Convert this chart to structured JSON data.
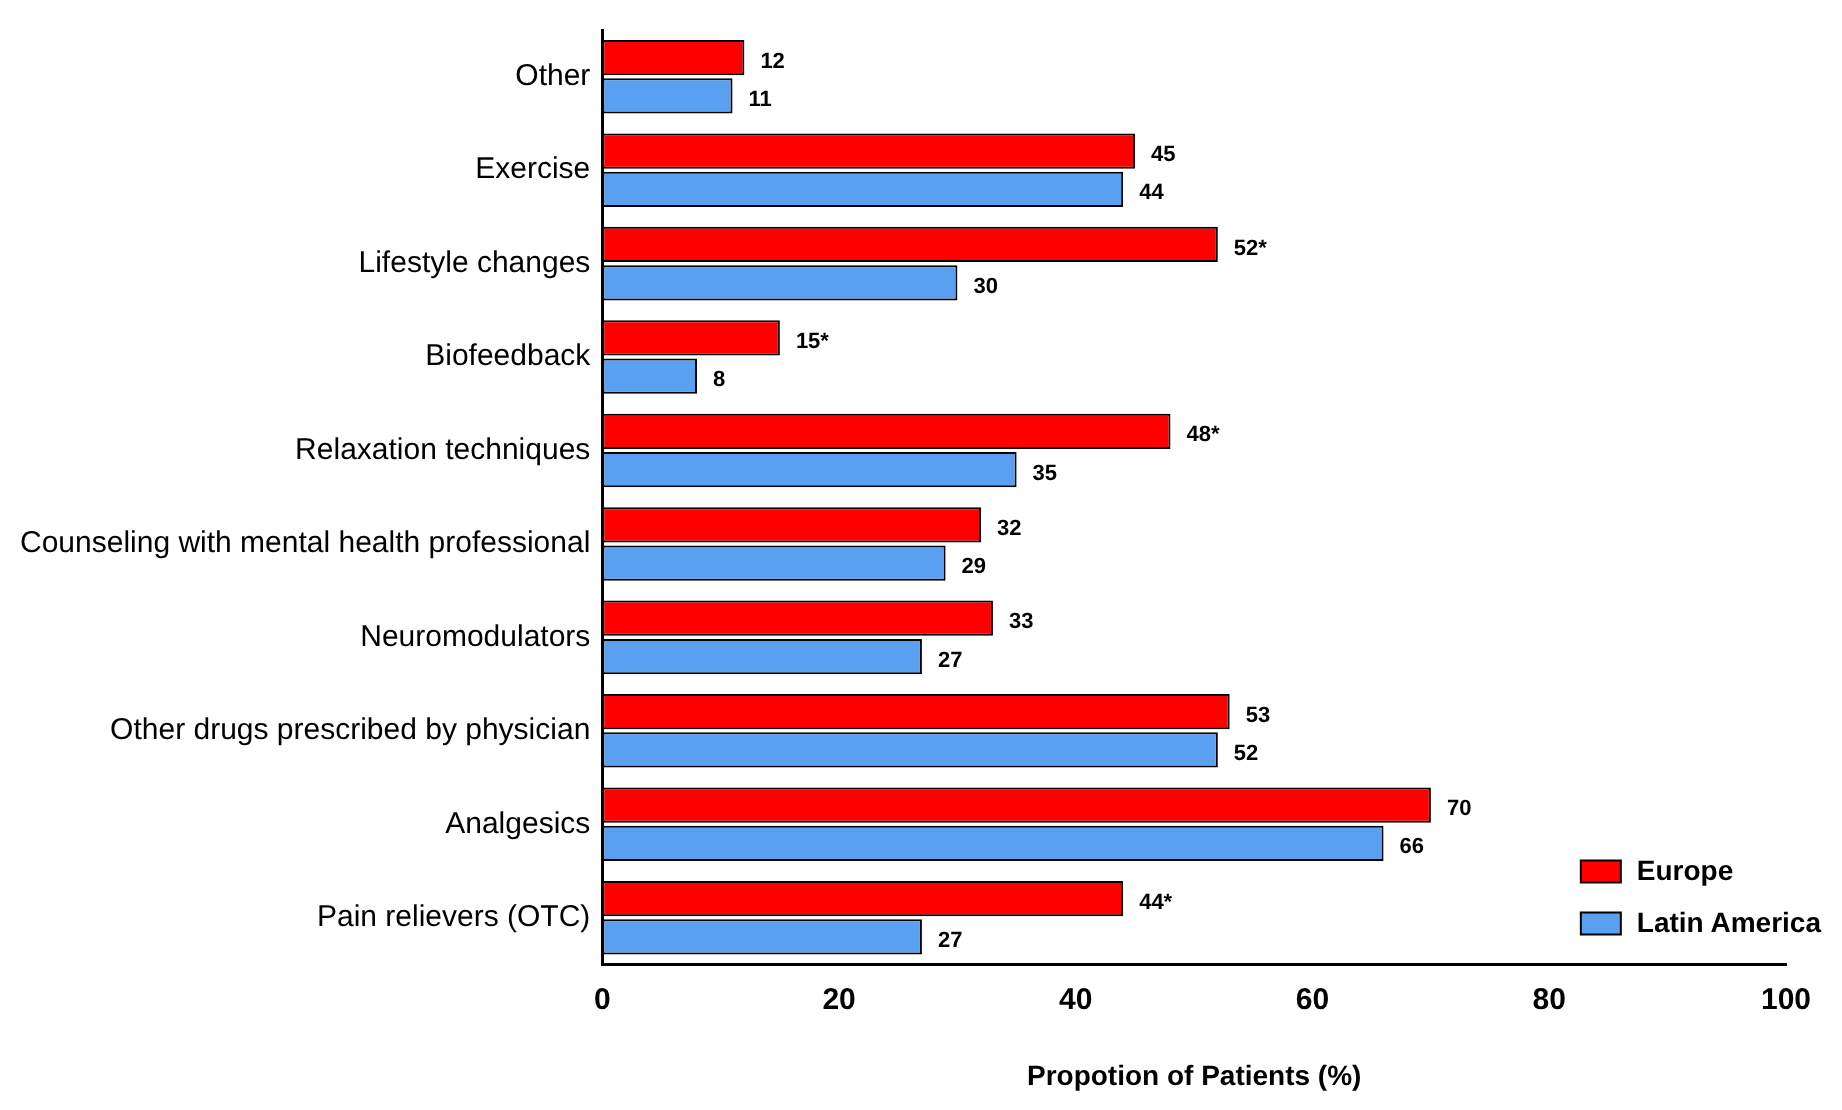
{
  "chart_data": {
    "type": "bar",
    "orientation": "horizontal",
    "xlabel": "Propotion of Patients (%)",
    "categories": [
      "Other",
      "Exercise",
      "Lifestyle changes",
      "Biofeedback",
      "Relaxation techniques",
      "Counseling with mental health professional",
      "Neuromodulators",
      "Other drugs prescribed by physician",
      "Analgesics",
      "Pain relievers (OTC)"
    ],
    "series": [
      {
        "name": "Europe",
        "color": "#ff0000",
        "values": [
          12,
          45,
          52,
          15,
          48,
          32,
          33,
          53,
          70,
          44
        ],
        "value_labels": [
          "12",
          "45",
          "52*",
          "15*",
          "48*",
          "32",
          "33",
          "53",
          "70",
          "44*"
        ]
      },
      {
        "name": "Latin America",
        "color": "#5aa0f0",
        "values": [
          11,
          44,
          30,
          8,
          35,
          29,
          27,
          52,
          66,
          27
        ],
        "value_labels": [
          "11",
          "44",
          "30",
          "8",
          "35",
          "29",
          "27",
          "52",
          "66",
          "27"
        ]
      }
    ],
    "xlim": [
      0,
      100
    ],
    "xticks": [
      0,
      20,
      40,
      60,
      80,
      100
    ],
    "grid": false,
    "legend": "bottom right"
  }
}
